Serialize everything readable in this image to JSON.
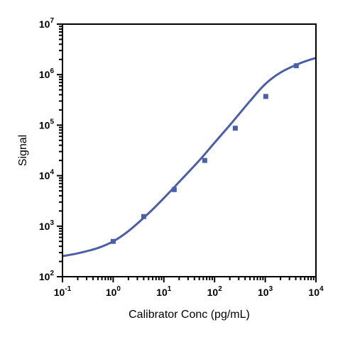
{
  "chart_data": {
    "type": "scatter",
    "title": "",
    "xlabel": "Calibrator Conc (pg/mL)",
    "ylabel": "Signal",
    "x_scale": "log",
    "y_scale": "log",
    "xlim": [
      0.1,
      10000
    ],
    "ylim": [
      100,
      10000000
    ],
    "x_ticks": [
      0.1,
      1,
      10,
      100,
      1000,
      10000
    ],
    "y_ticks": [
      100,
      1000,
      10000,
      100000,
      1000000,
      10000000
    ],
    "x_tick_labels": [
      [
        "10",
        "-1"
      ],
      [
        "10",
        "0"
      ],
      [
        "10",
        "1"
      ],
      [
        "10",
        "2"
      ],
      [
        "10",
        "3"
      ],
      [
        "10",
        "4"
      ]
    ],
    "y_tick_labels": [
      [
        "10",
        "2"
      ],
      [
        "10",
        "3"
      ],
      [
        "10",
        "4"
      ],
      [
        "10",
        "5"
      ],
      [
        "10",
        "6"
      ],
      [
        "10",
        "7"
      ]
    ],
    "grid": false,
    "legend": "none",
    "colors": {
      "series": "#4a5fa8",
      "axis": "#000000"
    },
    "series": [
      {
        "x": [
          1.0,
          4.0,
          16.0,
          64.0,
          256.0,
          1024.0,
          4096.0
        ],
        "y": [
          500,
          1550,
          5300,
          20000,
          87000,
          370000,
          1500000
        ]
      }
    ],
    "fit_curve": {
      "x": [
        0.1,
        0.2,
        0.5,
        1.0,
        2.0,
        5.0,
        10.0,
        20.0,
        50.0,
        100.0,
        200.0,
        500.0,
        1000.0,
        2000.0,
        5000.0,
        10000.0
      ],
      "y": [
        255,
        290,
        370,
        500,
        800,
        1800,
        3600,
        7500,
        20000,
        45000,
        100000,
        300000,
        650000,
        1100000,
        1700000,
        2150000
      ]
    }
  }
}
